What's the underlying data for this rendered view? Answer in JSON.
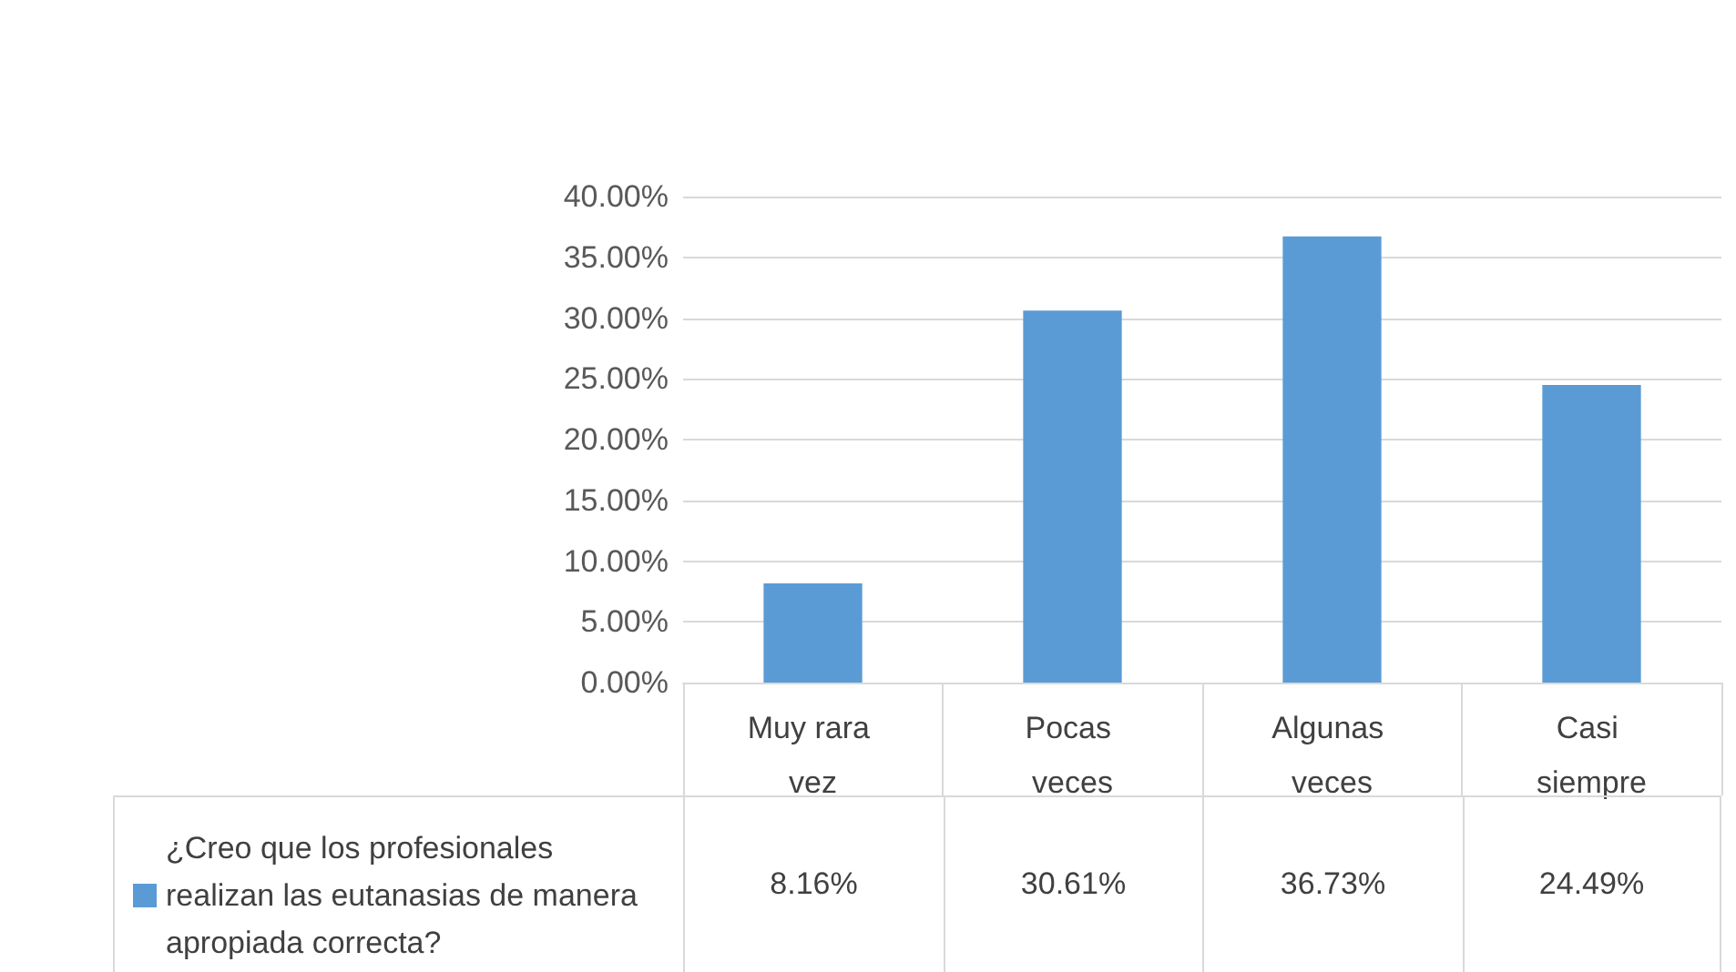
{
  "chart_data": {
    "type": "bar",
    "categories": [
      "Muy rara vez",
      "Pocas veces",
      "Algunas veces",
      "Casi siempre"
    ],
    "series": [
      {
        "name": "¿Creo que los profesionales realizan las eutanasias de manera apropiada correcta?",
        "color": "#5b9bd5",
        "values": [
          8.16,
          30.61,
          36.73,
          24.49
        ]
      }
    ],
    "value_labels": [
      "8.16%",
      "30.61%",
      "36.73%",
      "24.49%"
    ],
    "ylim": [
      0,
      40
    ],
    "yticks": [
      {
        "value": 0,
        "label": "0.00%"
      },
      {
        "value": 5,
        "label": "5.00%"
      },
      {
        "value": 10,
        "label": "10.00%"
      },
      {
        "value": 15,
        "label": "15.00%"
      },
      {
        "value": 20,
        "label": "20.00%"
      },
      {
        "value": 25,
        "label": "25.00%"
      },
      {
        "value": 30,
        "label": "30.00%"
      },
      {
        "value": 35,
        "label": "35.00%"
      },
      {
        "value": 40,
        "label": "40.00%"
      }
    ],
    "grid": true,
    "legend": "bottom left"
  }
}
